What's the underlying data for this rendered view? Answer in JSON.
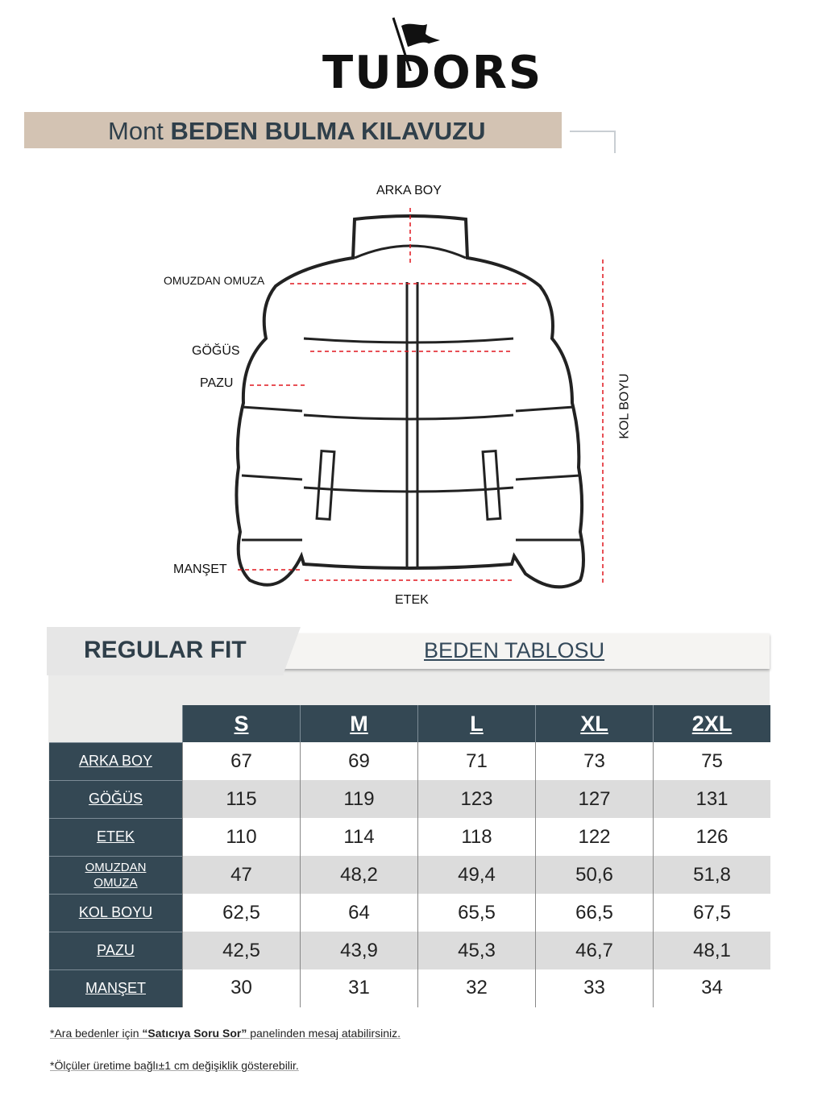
{
  "brand": {
    "logo": "TUDORS"
  },
  "title": {
    "prefix": "Mont",
    "main": "BEDEN BULMA KILAVUZU",
    "band_color": "#d3c3b3"
  },
  "diagram": {
    "labels": {
      "arka_boy": "ARKA BOY",
      "omuzdan_omuza": "OMUZDAN OMUZA",
      "gogus": "GÖĞÜS",
      "pazu": "PAZU",
      "manset": "MANŞET",
      "etek": "ETEK",
      "kol_boyu": "KOL BOYU"
    },
    "arrow_color": "#e0161e"
  },
  "table": {
    "fit_label": "REGULAR FIT",
    "heading": "BEDEN TABLOSU",
    "header_color": "#344854",
    "sizes": [
      "S",
      "M",
      "L",
      "XL",
      "2XL"
    ],
    "rows": [
      {
        "label": "ARKA BOY",
        "values": [
          "67",
          "69",
          "71",
          "73",
          "75"
        ]
      },
      {
        "label": "GÖĞÜS",
        "values": [
          "115",
          "119",
          "123",
          "127",
          "131"
        ]
      },
      {
        "label": "ETEK",
        "values": [
          "110",
          "114",
          "118",
          "122",
          "126"
        ]
      },
      {
        "label": "OMUZDAN OMUZA",
        "values": [
          "47",
          "48,2",
          "49,4",
          "50,6",
          "51,8"
        ]
      },
      {
        "label": "KOL BOYU",
        "values": [
          "62,5",
          "64",
          "65,5",
          "66,5",
          "67,5"
        ]
      },
      {
        "label": "PAZU",
        "values": [
          "42,5",
          "43,9",
          "45,3",
          "46,7",
          "48,1"
        ]
      },
      {
        "label": "MANŞET",
        "values": [
          "30",
          "31",
          "32",
          "33",
          "34"
        ]
      }
    ]
  },
  "notes": {
    "note1_pre": "*Ara bedenler için ",
    "note1_bold": "“Satıcıya Soru Sor”",
    "note1_post": " panelinden mesaj atabilirsiniz.",
    "note2": "*Ölçüler üretime bağlı±1 cm değişiklik gösterebilir."
  }
}
